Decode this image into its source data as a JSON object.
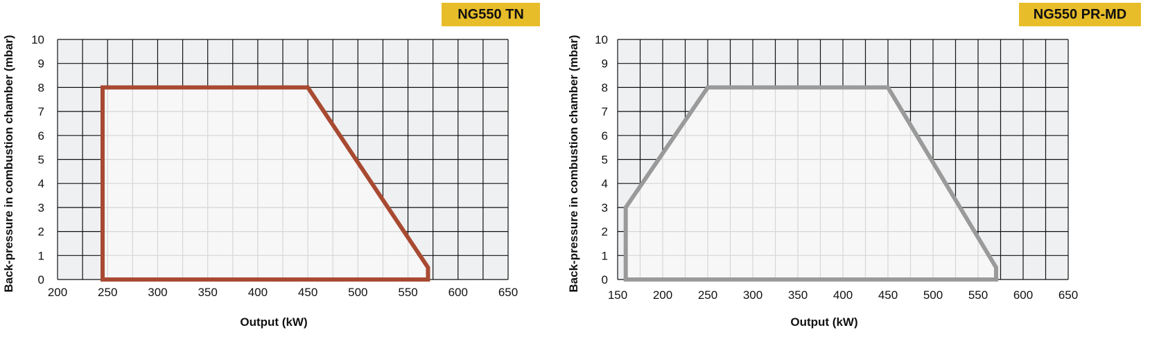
{
  "chart_data": [
    {
      "type": "area",
      "title": "NG550 TN",
      "xlabel": "Output (kW)",
      "ylabel": "Back-pressure in combustion chamber (mbar)",
      "xlim": [
        200,
        650
      ],
      "ylim": [
        0,
        10
      ],
      "x_ticks": [
        "200",
        "250",
        "300",
        "350",
        "400",
        "450",
        "500",
        "550",
        "600",
        "650"
      ],
      "y_ticks": [
        "0",
        "1",
        "2",
        "3",
        "4",
        "5",
        "6",
        "7",
        "8",
        "9",
        "10"
      ],
      "grid": true,
      "series": [
        {
          "points": [
            [
              245,
              0
            ],
            [
              245,
              8
            ],
            [
              450,
              8
            ],
            [
              570,
              0.5
            ],
            [
              570,
              0
            ]
          ]
        }
      ],
      "colors": {
        "outline": "#a84a32",
        "fill": "#f7f7f7",
        "grid_bg": "#eef0f2",
        "badge": "#e8bd2a"
      }
    },
    {
      "type": "area",
      "title": "NG550 PR-MD",
      "xlabel": "Output (kW)",
      "ylabel": "Back-pressure in combustion chamber (mbar)",
      "xlim": [
        150,
        650
      ],
      "ylim": [
        0,
        10
      ],
      "x_ticks": [
        "150",
        "200",
        "250",
        "300",
        "350",
        "400",
        "450",
        "500",
        "550",
        "600",
        "650"
      ],
      "y_ticks": [
        "0",
        "1",
        "2",
        "3",
        "4",
        "5",
        "6",
        "7",
        "8",
        "9",
        "10"
      ],
      "grid": true,
      "series": [
        {
          "points": [
            [
              159,
              0
            ],
            [
              159,
              3
            ],
            [
              250,
              8
            ],
            [
              450,
              8
            ],
            [
              570,
              0.5
            ],
            [
              570,
              0
            ]
          ]
        }
      ],
      "colors": {
        "outline": "#9a9a9a",
        "fill": "#f7f7f7",
        "grid_bg": "#eef0f2",
        "badge": "#e8bd2a"
      }
    }
  ]
}
